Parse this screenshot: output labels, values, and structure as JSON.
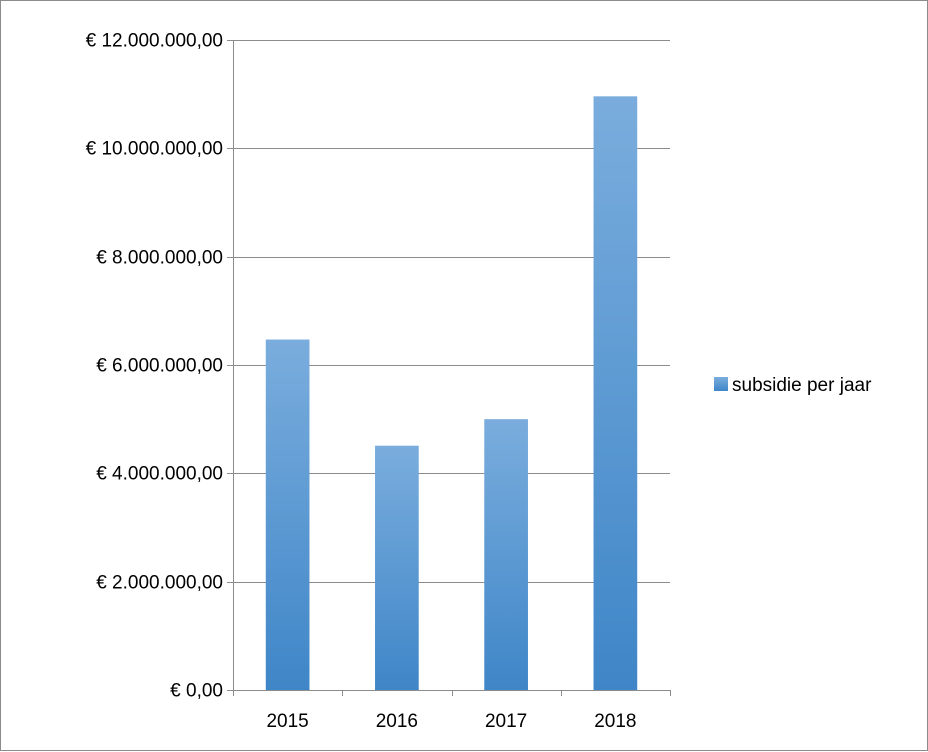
{
  "chart_data": {
    "type": "bar",
    "categories": [
      "2015",
      "2016",
      "2017",
      "2018"
    ],
    "series": [
      {
        "name": "subsidie per jaar",
        "values": [
          6470000,
          4510000,
          5000000,
          10960000
        ],
        "color": "#5b9bd5"
      }
    ],
    "ylim": [
      0,
      12000000
    ],
    "yticks": [
      0,
      2000000,
      4000000,
      6000000,
      8000000,
      10000000,
      12000000
    ],
    "ytick_labels": [
      "€ 0,00",
      "€ 2.000.000,00",
      "€ 4.000.000,00",
      "€ 6.000.000,00",
      "€ 8.000.000,00",
      "€ 10.000.000,00",
      "€ 12.000.000,00"
    ],
    "grid": true,
    "legend_position": "right"
  }
}
